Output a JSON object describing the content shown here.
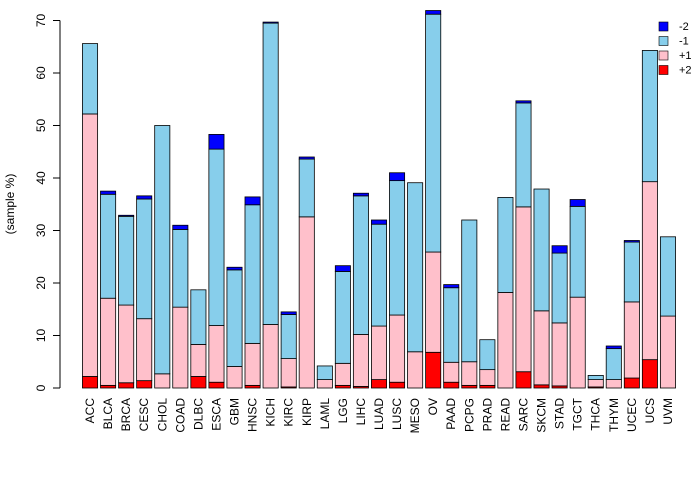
{
  "chart_data": {
    "type": "bar",
    "stacked": true,
    "title": "",
    "xlabel": "",
    "ylabel": "(sample %)",
    "ylim": [
      0,
      72
    ],
    "yticks": [
      0,
      10,
      20,
      30,
      40,
      50,
      60,
      70
    ],
    "grid": false,
    "legend_position": "top-right",
    "categories": [
      "ACC",
      "BLCA",
      "BRCA",
      "CESC",
      "CHOL",
      "COAD",
      "DLBC",
      "ESCA",
      "GBM",
      "HNSC",
      "KICH",
      "KIRC",
      "KIRP",
      "LAML",
      "LGG",
      "LIHC",
      "LUAD",
      "LUSC",
      "MESO",
      "OV",
      "PAAD",
      "PCPG",
      "PRAD",
      "READ",
      "SARC",
      "SKCM",
      "STAD",
      "TGCT",
      "THCA",
      "THYM",
      "UCEC",
      "UCS",
      "UVM"
    ],
    "series": [
      {
        "name": "+2",
        "color": "#ff0000",
        "values": [
          2.2,
          0.5,
          1.0,
          1.4,
          0,
          0,
          2.2,
          1.1,
          0,
          0.5,
          0,
          0.2,
          0,
          0,
          0.5,
          0.3,
          1.6,
          1.1,
          0,
          6.8,
          1.1,
          0.5,
          0.5,
          0,
          3.1,
          0.6,
          0.4,
          0,
          0.2,
          0,
          1.9,
          5.4,
          0
        ]
      },
      {
        "name": "+1",
        "color": "#ffc0cb",
        "values": [
          50.0,
          16.6,
          14.8,
          11.8,
          2.7,
          15.4,
          6.1,
          10.8,
          4.1,
          8.0,
          12.1,
          5.4,
          32.6,
          1.6,
          4.2,
          9.9,
          10.2,
          12.8,
          6.9,
          19.1,
          3.8,
          4.5,
          3.0,
          18.2,
          31.4,
          14.1,
          12.0,
          17.3,
          1.4,
          1.6,
          14.5,
          33.9,
          13.7
        ]
      },
      {
        "name": "-1",
        "color": "#87ceeb",
        "values": [
          13.4,
          19.8,
          16.9,
          22.8,
          47.3,
          14.8,
          10.4,
          33.6,
          18.4,
          26.4,
          57.4,
          8.4,
          11.0,
          2.6,
          17.5,
          26.4,
          19.4,
          25.6,
          32.2,
          45.3,
          14.2,
          27.0,
          5.7,
          18.1,
          19.8,
          23.2,
          13.3,
          17.3,
          0.8,
          5.9,
          11.4,
          25.0,
          15.1
        ]
      },
      {
        "name": "-2",
        "color": "#0000ff",
        "values": [
          0,
          0.6,
          0.2,
          0.6,
          0,
          0.8,
          0,
          2.8,
          0.5,
          1.5,
          0.2,
          0.5,
          0.4,
          0,
          1.1,
          0.5,
          0.8,
          1.5,
          0,
          0.7,
          0.6,
          0,
          0,
          0,
          0.4,
          0,
          1.4,
          1.3,
          0,
          0.5,
          0.3,
          0,
          0
        ]
      }
    ],
    "legend_order": [
      "-2",
      "-1",
      "+1",
      "+2"
    ]
  }
}
